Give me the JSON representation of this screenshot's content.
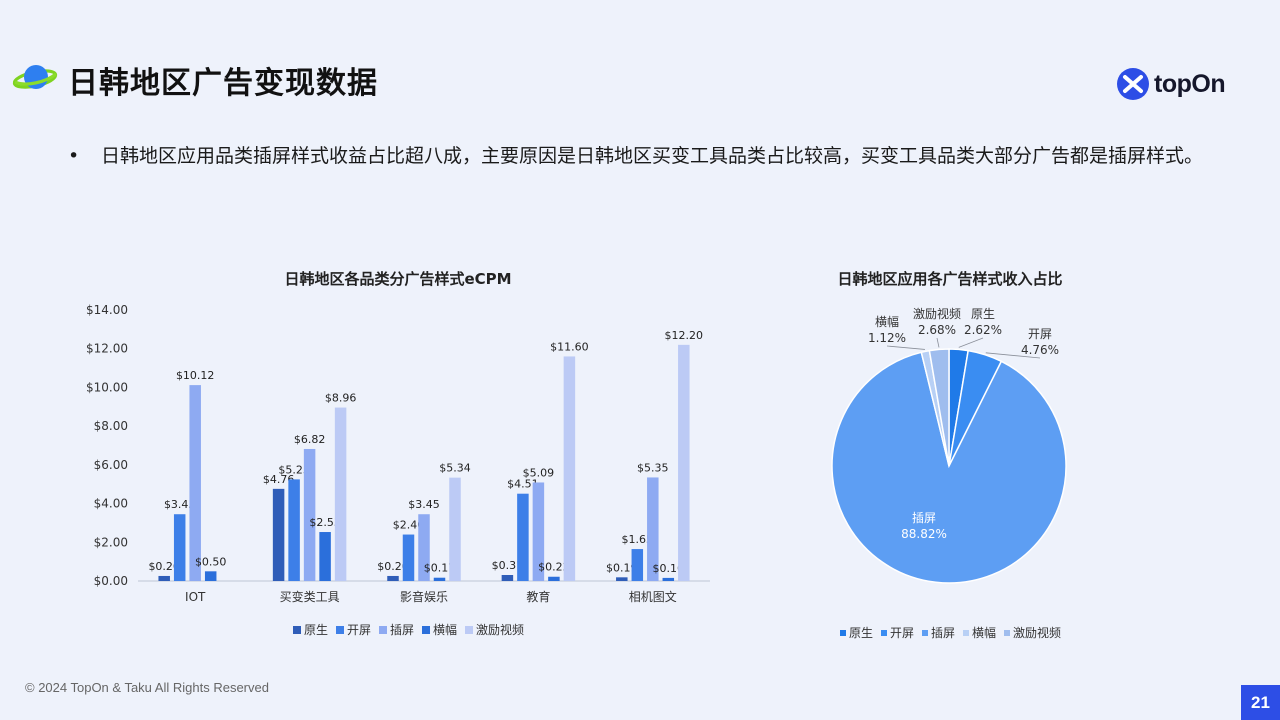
{
  "header": {
    "title": "日韩地区广告变现数据",
    "brand": "topOn"
  },
  "bullet": {
    "marker": "•",
    "text": "日韩地区应用品类插屏样式收益占比超八成，主要原因是日韩地区买变工具品类占比较高，买变工具品类大部分广告都是插屏样式。"
  },
  "colors": {
    "原生": "#2f5db8",
    "开屏": "#3d7fe8",
    "插屏": "#8eaaf2",
    "横幅": "#2b6fdb",
    "激励视频": "#bccaf5",
    "pie_原生": "#1f7ae8",
    "pie_开屏": "#3a8df2",
    "pie_插屏": "#5d9ef3",
    "pie_横幅": "#b8d0f5",
    "pie_激励视频": "#9fbdee"
  },
  "chart_data": [
    {
      "type": "bar",
      "title": "日韩地区各品类分广告样式eCPM",
      "categories": [
        "IOT",
        "买变类工具",
        "影音娱乐",
        "教育",
        "相机图文"
      ],
      "ylim": [
        0,
        14
      ],
      "yticks": [
        "$0.00",
        "$2.00",
        "$4.00",
        "$6.00",
        "$8.00",
        "$10.00",
        "$12.00",
        "$14.00"
      ],
      "legend_position": "bottom",
      "series": [
        {
          "name": "原生",
          "values": [
            0.26,
            4.76,
            0.26,
            0.31,
            0.19
          ],
          "labels": [
            "$0.26",
            "$4.76",
            "$0.26",
            "$0.31",
            "$0.19"
          ]
        },
        {
          "name": "开屏",
          "values": [
            3.45,
            5.25,
            2.4,
            4.51,
            1.65
          ],
          "labels": [
            "$3.45",
            "$5.25",
            "$2.40",
            "$4.51",
            "$1.65"
          ]
        },
        {
          "name": "插屏",
          "values": [
            10.12,
            6.82,
            3.45,
            5.09,
            5.35
          ],
          "labels": [
            "$10.12",
            "$6.82",
            "$3.45",
            "$5.09",
            "$5.35"
          ]
        },
        {
          "name": "横幅",
          "values": [
            0.5,
            2.53,
            0.17,
            0.22,
            0.16
          ],
          "labels": [
            "$0.50",
            "$2.53",
            "$0.17",
            "$0.22",
            "$0.16"
          ]
        },
        {
          "name": "激励视频",
          "values": [
            null,
            8.96,
            5.34,
            11.6,
            12.2
          ],
          "labels": [
            "",
            "$8.96",
            "$5.34",
            "$11.60",
            "$12.20"
          ]
        }
      ]
    },
    {
      "type": "pie",
      "title": "日韩地区应用各广告样式收入占比",
      "legend_position": "bottom",
      "slices": [
        {
          "name": "原生",
          "value": 2.62,
          "label": "2.62%"
        },
        {
          "name": "开屏",
          "value": 4.76,
          "label": "4.76%"
        },
        {
          "name": "插屏",
          "value": 88.82,
          "label": "88.82%"
        },
        {
          "name": "横幅",
          "value": 1.12,
          "label": "1.12%"
        },
        {
          "name": "激励视频",
          "value": 2.68,
          "label": "2.68%"
        }
      ]
    }
  ],
  "footer": {
    "copyright": "© 2024 TopOn & Taku All Rights Reserved",
    "page": "21"
  }
}
